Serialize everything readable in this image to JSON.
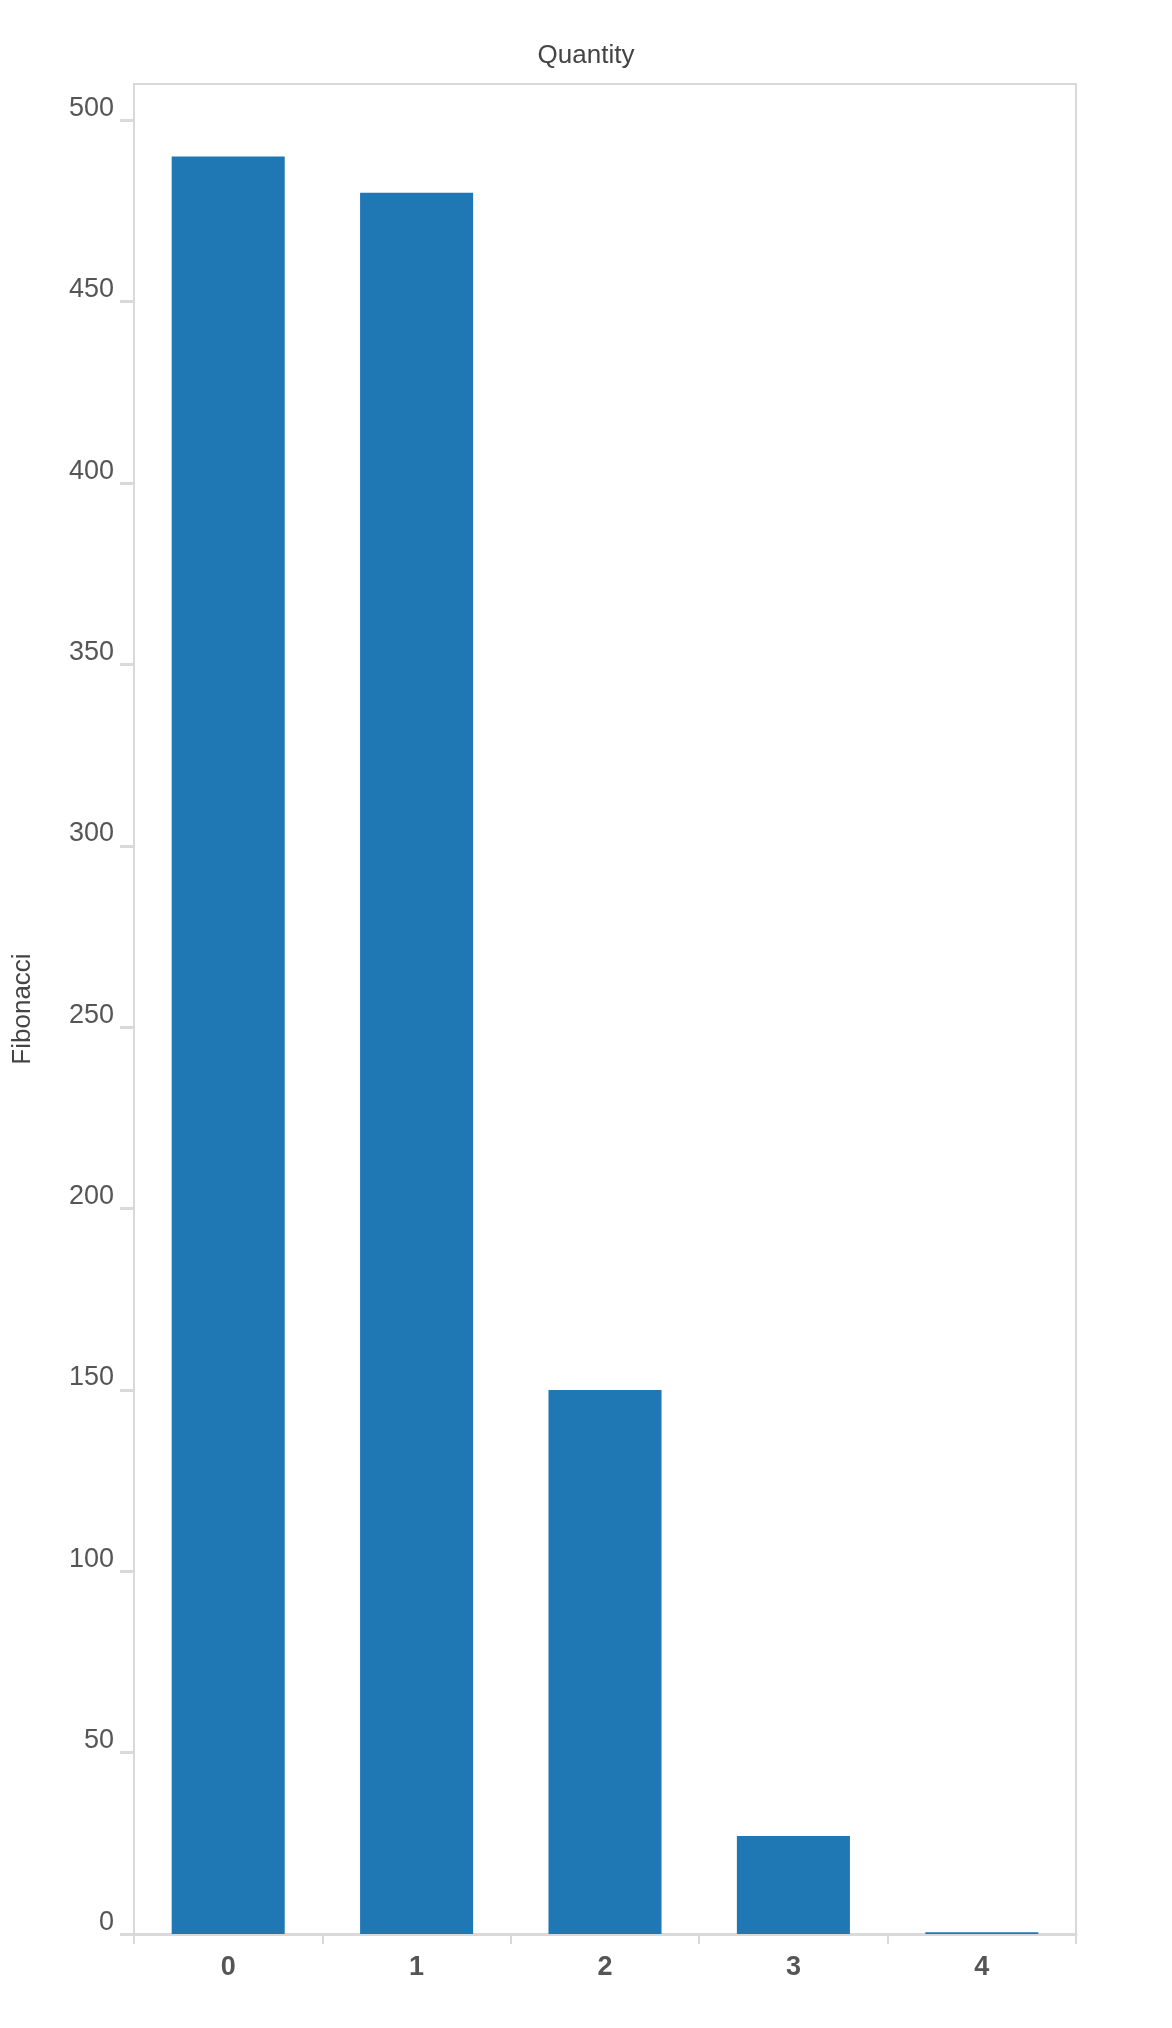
{
  "chart_data": {
    "type": "bar",
    "title": "Quantity",
    "ylabel": "Fibonacci",
    "categories": [
      "0",
      "1",
      "2",
      "3",
      "4"
    ],
    "values": [
      490,
      480,
      150,
      27,
      0.5
    ],
    "color": "#1f77b4",
    "ylim": [
      0,
      510
    ],
    "yticks": [
      0,
      50,
      100,
      150,
      200,
      250,
      300,
      350,
      400,
      450,
      500
    ],
    "grid": false
  }
}
